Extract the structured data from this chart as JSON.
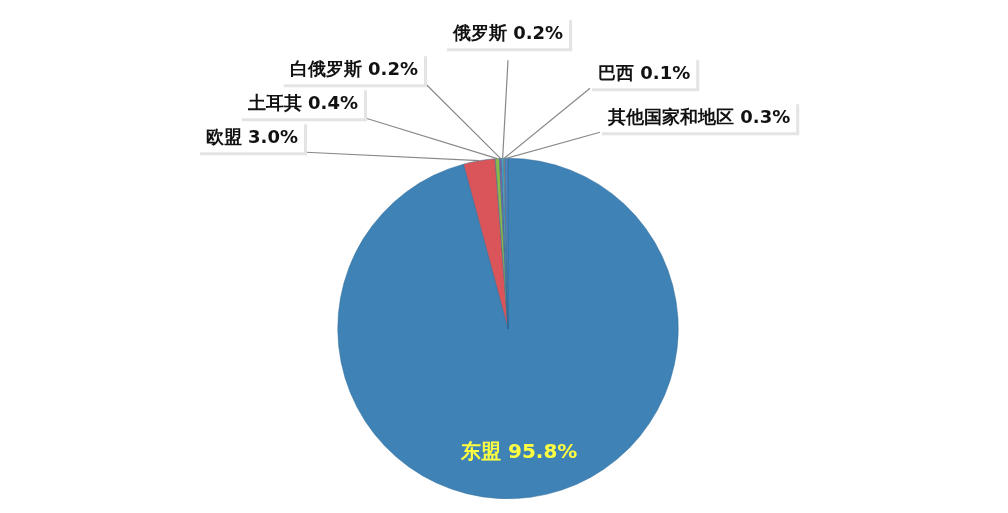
{
  "chart_data": {
    "type": "pie",
    "categories": [
      "东盟",
      "欧盟",
      "土耳其",
      "白俄罗斯",
      "俄罗斯",
      "巴西",
      "其他国家和地区"
    ],
    "values": [
      95.8,
      3.0,
      0.4,
      0.2,
      0.2,
      0.1,
      0.3
    ],
    "colors": [
      "#3f82b6",
      "#d9555a",
      "#8db84a",
      "#8064a2",
      "#4bacc6",
      "#f79646",
      "#4f81bd"
    ],
    "value_labels": [
      "95.8%",
      "3.0%",
      "0.4%",
      "0.2%",
      "0.2%",
      "0.1%",
      "0.3%"
    ],
    "legend": false
  }
}
